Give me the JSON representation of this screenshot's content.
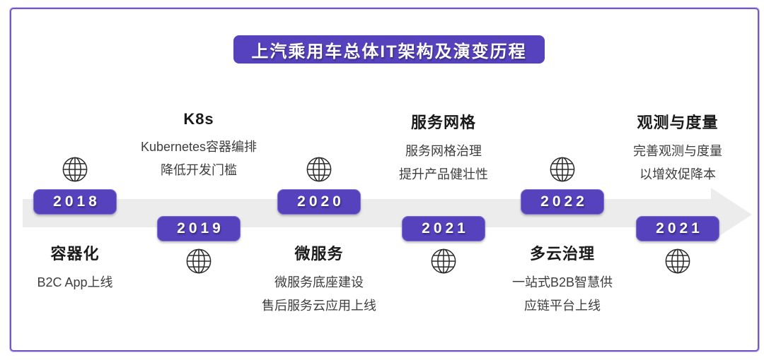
{
  "page": {
    "title": "上汽乘用车总体IT架构及演变历程",
    "accent_color": "#5642bd",
    "frame_border_color": "#7258ca",
    "arrow_color": "#ececec"
  },
  "timeline": {
    "milestones": [
      {
        "year": "2018",
        "position": "top",
        "icon": "globe-icon",
        "title": "容器化",
        "lines": [
          "B2C App上线"
        ]
      },
      {
        "year": "2019",
        "position": "bottom",
        "icon": "globe-icon",
        "title": "K8s",
        "lines": [
          "Kubernetes容器编排",
          "降低开发门槛"
        ]
      },
      {
        "year": "2020",
        "position": "top",
        "icon": "globe-icon",
        "title": "微服务",
        "lines": [
          "微服务底座建设",
          "售后服务云应用上线"
        ]
      },
      {
        "year": "2021",
        "position": "bottom",
        "icon": "globe-icon",
        "title": "服务网格",
        "lines": [
          "服务网格治理",
          "提升产品健壮性"
        ]
      },
      {
        "year": "2022",
        "position": "top",
        "icon": "globe-icon",
        "title": "多云治理",
        "lines": [
          "一站式B2B智慧供",
          "应链平台上线"
        ]
      },
      {
        "year": "2021",
        "position": "bottom",
        "icon": "globe-icon",
        "title": "观测与度量",
        "lines": [
          "完善观测与度量",
          "以增效促降本"
        ]
      }
    ]
  }
}
